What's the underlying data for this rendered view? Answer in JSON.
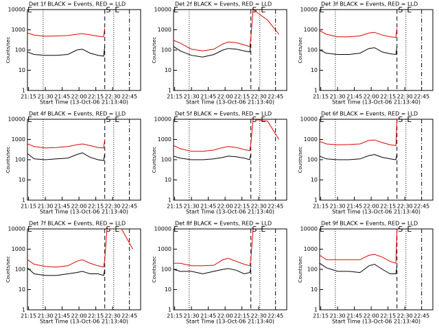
{
  "chart_data": [
    {
      "type": "line",
      "title": "Det 1f BLACK = Events, RED = LLD",
      "x_label": "Start Time (13-Oct-06 21:13:40)",
      "y_label": "Counts/sec",
      "log_y": true,
      "x": [
        "21:14",
        "21:20",
        "21:30",
        "21:40",
        "21:50",
        "21:58",
        "22:03",
        "22:10",
        "22:17",
        "22:22",
        "22:23",
        "22:25",
        "22:38",
        "22:48"
      ],
      "series": [
        {
          "name": "LLD",
          "color": "#e00000",
          "values": [
            700,
            550,
            480,
            500,
            520,
            600,
            650,
            560,
            480,
            450,
            1200,
            null,
            null,
            null
          ]
        },
        {
          "name": "Events",
          "color": "#000000",
          "values": [
            80,
            60,
            55,
            55,
            60,
            100,
            110,
            70,
            55,
            50,
            150,
            null,
            null,
            null
          ]
        }
      ],
      "xlim": [
        "21:14",
        "22:55"
      ],
      "ylim": [
        1,
        10000
      ],
      "yticks": [
        1,
        10,
        100,
        1000,
        10000
      ],
      "xticks": [
        "21:15",
        "21:30",
        "21:45",
        "22:00",
        "22:15",
        "22:30",
        "22:45"
      ],
      "vlines": [
        {
          "x": "21:28",
          "style": "dotted"
        },
        {
          "x": "22:23",
          "style": "dashed"
        },
        {
          "x": "22:31",
          "style": "dotted"
        },
        {
          "x": "22:45",
          "style": "dashdot"
        }
      ],
      "annotations": [
        {
          "x": "21:14",
          "text": "E"
        },
        {
          "x": "22:24",
          "text": "S"
        },
        {
          "x": "22:32",
          "text": "E"
        }
      ]
    },
    {
      "type": "line",
      "title": "Det 2f BLACK = Events, RED = LLD",
      "x_label": "Start Time (13-Oct-06 21:13:40)",
      "y_label": "Counts/sec",
      "log_y": true,
      "x": [
        "21:14",
        "21:20",
        "21:30",
        "21:40",
        "21:50",
        "21:58",
        "22:03",
        "22:10",
        "22:17",
        "22:22",
        "22:23",
        "22:25",
        "22:38",
        "22:48"
      ],
      "series": [
        {
          "name": "LLD",
          "color": "#e00000",
          "values": [
            300,
            220,
            110,
            90,
            110,
            200,
            250,
            230,
            180,
            150,
            400,
            10000,
            3000,
            600
          ]
        },
        {
          "name": "Events",
          "color": "#000000",
          "values": [
            150,
            90,
            55,
            45,
            60,
            100,
            120,
            110,
            90,
            80,
            200,
            null,
            null,
            null
          ]
        }
      ],
      "xlim": [
        "21:14",
        "22:55"
      ],
      "ylim": [
        1,
        10000
      ],
      "yticks": [
        1,
        10,
        100,
        1000,
        10000
      ],
      "xticks": [
        "21:15",
        "21:30",
        "21:45",
        "22:00",
        "22:15",
        "22:30",
        "22:45"
      ],
      "vlines": [
        {
          "x": "21:28",
          "style": "dotted"
        },
        {
          "x": "22:23",
          "style": "dashed"
        },
        {
          "x": "22:31",
          "style": "dotted"
        },
        {
          "x": "22:45",
          "style": "dashdot"
        }
      ],
      "annotations": [
        {
          "x": "21:14",
          "text": "E"
        },
        {
          "x": "22:24",
          "text": "S"
        },
        {
          "x": "22:32",
          "text": "E"
        }
      ]
    },
    {
      "type": "line",
      "title": "Det 3f BLACK = Events, RED = LLD",
      "x_label": "Start Time (13-Oct-06 21:13:40)",
      "y_label": "Counts/sec",
      "log_y": true,
      "x": [
        "21:14",
        "21:20",
        "21:30",
        "21:40",
        "21:50",
        "21:58",
        "22:03",
        "22:10",
        "22:17",
        "22:22",
        "22:23",
        "22:25",
        "22:38",
        "22:48"
      ],
      "series": [
        {
          "name": "LLD",
          "color": "#e00000",
          "values": [
            900,
            600,
            450,
            450,
            500,
            700,
            750,
            550,
            450,
            420,
            1200,
            null,
            null,
            null
          ]
        },
        {
          "name": "Events",
          "color": "#000000",
          "values": [
            100,
            70,
            60,
            60,
            70,
            120,
            130,
            80,
            65,
            60,
            150,
            null,
            null,
            null
          ]
        }
      ],
      "xlim": [
        "21:14",
        "22:55"
      ],
      "ylim": [
        1,
        10000
      ],
      "yticks": [
        1,
        10,
        100,
        1000,
        10000
      ],
      "xticks": [
        "21:15",
        "21:30",
        "21:45",
        "22:00",
        "22:15",
        "22:30",
        "22:45"
      ],
      "vlines": [
        {
          "x": "21:28",
          "style": "dotted"
        },
        {
          "x": "22:23",
          "style": "dashed"
        },
        {
          "x": "22:31",
          "style": "dotted"
        },
        {
          "x": "22:45",
          "style": "dashdot"
        }
      ],
      "annotations": [
        {
          "x": "21:14",
          "text": "E"
        },
        {
          "x": "22:24",
          "text": "S"
        },
        {
          "x": "22:32",
          "text": "E"
        }
      ]
    },
    {
      "type": "line",
      "title": "Det 4f BLACK = Events, RED = LLD",
      "x_label": "Start Time (13-Oct-06 21:13:40)",
      "y_label": "Counts/sec",
      "log_y": true,
      "x": [
        "21:14",
        "21:20",
        "21:30",
        "21:40",
        "21:50",
        "21:58",
        "22:03",
        "22:10",
        "22:17",
        "22:22",
        "22:23",
        "22:25",
        "22:38",
        "22:48"
      ],
      "series": [
        {
          "name": "LLD",
          "color": "#e00000",
          "values": [
            600,
            450,
            380,
            400,
            450,
            550,
            600,
            500,
            400,
            380,
            1000,
            null,
            null,
            null
          ]
        },
        {
          "name": "Events",
          "color": "#000000",
          "values": [
            200,
            110,
            100,
            110,
            120,
            180,
            220,
            130,
            100,
            90,
            200,
            null,
            null,
            null
          ]
        }
      ],
      "xlim": [
        "21:14",
        "22:55"
      ],
      "ylim": [
        1,
        10000
      ],
      "yticks": [
        1,
        10,
        100,
        1000,
        10000
      ],
      "xticks": [
        "21:15",
        "21:30",
        "21:45",
        "22:00",
        "22:15",
        "22:30",
        "22:45"
      ],
      "vlines": [
        {
          "x": "21:28",
          "style": "dotted"
        },
        {
          "x": "22:23",
          "style": "dashed"
        },
        {
          "x": "22:31",
          "style": "dotted"
        },
        {
          "x": "22:45",
          "style": "dashdot"
        }
      ],
      "annotations": [
        {
          "x": "21:14",
          "text": "E"
        },
        {
          "x": "22:24",
          "text": "S"
        },
        {
          "x": "22:32",
          "text": "E"
        }
      ]
    },
    {
      "type": "line",
      "title": "Det 5f BLACK = Events, RED = LLD",
      "x_label": "Start Time (13-Oct-06 21:13:40)",
      "y_label": "Counts/sec",
      "log_y": true,
      "x": [
        "21:14",
        "21:20",
        "21:30",
        "21:40",
        "21:50",
        "21:58",
        "22:03",
        "22:10",
        "22:17",
        "22:22",
        "22:23",
        "22:25",
        "22:38",
        "22:48"
      ],
      "series": [
        {
          "name": "LLD",
          "color": "#e00000",
          "values": [
            500,
            350,
            260,
            260,
            300,
            400,
            450,
            400,
            320,
            280,
            600,
            10000,
            8000,
            1000
          ]
        },
        {
          "name": "Events",
          "color": "#000000",
          "values": [
            150,
            120,
            100,
            100,
            110,
            130,
            150,
            140,
            120,
            100,
            200,
            null,
            null,
            null
          ]
        }
      ],
      "xlim": [
        "21:14",
        "22:55"
      ],
      "ylim": [
        1,
        10000
      ],
      "yticks": [
        1,
        10,
        100,
        1000,
        10000
      ],
      "xticks": [
        "21:15",
        "21:30",
        "21:45",
        "22:00",
        "22:15",
        "22:30",
        "22:45"
      ],
      "vlines": [
        {
          "x": "21:28",
          "style": "dotted"
        },
        {
          "x": "22:23",
          "style": "dashed"
        },
        {
          "x": "22:31",
          "style": "dotted"
        },
        {
          "x": "22:45",
          "style": "dashdot"
        }
      ],
      "annotations": [
        {
          "x": "21:14",
          "text": "E"
        },
        {
          "x": "22:24",
          "text": "S"
        },
        {
          "x": "22:32",
          "text": "E"
        }
      ]
    },
    {
      "type": "line",
      "title": "Det 6f BLACK = Events, RED = LLD",
      "x_label": "Start Time (13-Oct-06 21:13:40)",
      "y_label": "Counts/sec",
      "log_y": true,
      "x": [
        "21:14",
        "21:20",
        "21:30",
        "21:40",
        "21:50",
        "21:58",
        "22:03",
        "22:10",
        "22:17",
        "22:22",
        "22:23",
        "22:25",
        "22:38",
        "22:48"
      ],
      "series": [
        {
          "name": "LLD",
          "color": "#e00000",
          "values": [
            800,
            600,
            550,
            560,
            600,
            900,
            950,
            700,
            550,
            500,
            10000,
            null,
            null,
            null
          ]
        },
        {
          "name": "Events",
          "color": "#000000",
          "values": [
            150,
            110,
            100,
            100,
            110,
            160,
            180,
            130,
            110,
            100,
            200,
            null,
            null,
            null
          ]
        }
      ],
      "xlim": [
        "21:14",
        "22:55"
      ],
      "ylim": [
        1,
        10000
      ],
      "yticks": [
        1,
        10,
        100,
        1000,
        10000
      ],
      "xticks": [
        "21:15",
        "21:30",
        "21:45",
        "22:00",
        "22:15",
        "22:30",
        "22:45"
      ],
      "vlines": [
        {
          "x": "21:28",
          "style": "dotted"
        },
        {
          "x": "22:23",
          "style": "dashed"
        },
        {
          "x": "22:31",
          "style": "dotted"
        },
        {
          "x": "22:45",
          "style": "dashdot"
        }
      ],
      "annotations": [
        {
          "x": "21:14",
          "text": "E"
        },
        {
          "x": "22:24",
          "text": "S"
        },
        {
          "x": "22:32",
          "text": "E"
        }
      ]
    },
    {
      "type": "line",
      "title": "Det 7f BLACK = Events, RED = LLD",
      "x_label": "Start Time (13-Oct-06 21:13:40)",
      "y_label": "Counts/sec",
      "log_y": true,
      "x": [
        "21:14",
        "21:20",
        "21:30",
        "21:40",
        "21:50",
        "21:58",
        "22:03",
        "22:10",
        "22:17",
        "22:22",
        "22:23",
        "22:25",
        "22:38",
        "22:48"
      ],
      "series": [
        {
          "name": "LLD",
          "color": "#e00000",
          "values": [
            300,
            180,
            140,
            130,
            150,
            250,
            300,
            200,
            150,
            130,
            300,
            10000,
            10000,
            1000
          ]
        },
        {
          "name": "Events",
          "color": "#000000",
          "values": [
            120,
            60,
            50,
            50,
            60,
            70,
            80,
            60,
            60,
            50,
            100,
            null,
            null,
            null
          ]
        }
      ],
      "xlim": [
        "21:14",
        "22:55"
      ],
      "ylim": [
        1,
        10000
      ],
      "yticks": [
        1,
        10,
        100,
        1000,
        10000
      ],
      "xticks": [
        "21:15",
        "21:30",
        "21:45",
        "22:00",
        "22:15",
        "22:30",
        "22:45"
      ],
      "vlines": [
        {
          "x": "21:28",
          "style": "dotted"
        },
        {
          "x": "22:23",
          "style": "dashed"
        },
        {
          "x": "22:31",
          "style": "dotted"
        },
        {
          "x": "22:45",
          "style": "dashdot"
        }
      ],
      "annotations": [
        {
          "x": "21:14",
          "text": "E"
        },
        {
          "x": "22:24",
          "text": "S"
        },
        {
          "x": "22:32",
          "text": "E"
        }
      ]
    },
    {
      "type": "line",
      "title": "Det 8f BLACK = Events, RED = LLD",
      "x_label": "Start Time (13-Oct-06 21:13:40)",
      "y_label": "Counts/sec",
      "log_y": true,
      "x": [
        "21:14",
        "21:20",
        "21:30",
        "21:40",
        "21:50",
        "21:58",
        "22:03",
        "22:10",
        "22:17",
        "22:22",
        "22:23",
        "22:25",
        "22:38",
        "22:48"
      ],
      "series": [
        {
          "name": "LLD",
          "color": "#e00000",
          "values": [
            200,
            200,
            150,
            150,
            160,
            300,
            350,
            250,
            180,
            150,
            300,
            10000,
            null,
            null
          ]
        },
        {
          "name": "Events",
          "color": "#000000",
          "values": [
            100,
            80,
            80,
            60,
            80,
            100,
            110,
            90,
            60,
            70,
            120,
            null,
            null,
            null
          ]
        }
      ],
      "xlim": [
        "21:14",
        "22:55"
      ],
      "ylim": [
        1,
        10000
      ],
      "yticks": [
        1,
        10,
        100,
        1000,
        10000
      ],
      "xticks": [
        "21:15",
        "21:30",
        "21:45",
        "22:00",
        "22:15",
        "22:30",
        "22:45"
      ],
      "vlines": [
        {
          "x": "21:28",
          "style": "dotted"
        },
        {
          "x": "22:23",
          "style": "dashed"
        },
        {
          "x": "22:31",
          "style": "dotted"
        },
        {
          "x": "22:45",
          "style": "dashdot"
        }
      ],
      "annotations": [
        {
          "x": "21:14",
          "text": "E"
        },
        {
          "x": "22:24",
          "text": "S"
        },
        {
          "x": "22:32",
          "text": "E"
        }
      ]
    },
    {
      "type": "line",
      "title": "Det 9f BLACK = Events, RED = LLD",
      "x_label": "Start Time (13-Oct-06 21:13:40)",
      "y_label": "Counts/sec",
      "log_y": true,
      "x": [
        "21:14",
        "21:20",
        "21:30",
        "21:40",
        "21:50",
        "21:58",
        "22:03",
        "22:10",
        "22:17",
        "22:22",
        "22:23",
        "22:25",
        "22:38",
        "22:48"
      ],
      "series": [
        {
          "name": "LLD",
          "color": "#e00000",
          "values": [
            500,
            300,
            300,
            300,
            300,
            500,
            550,
            400,
            250,
            200,
            10000,
            null,
            null,
            null
          ]
        },
        {
          "name": "Events",
          "color": "#000000",
          "values": [
            200,
            120,
            80,
            80,
            70,
            150,
            180,
            100,
            60,
            60,
            150,
            null,
            null,
            null
          ]
        }
      ],
      "xlim": [
        "21:14",
        "22:55"
      ],
      "ylim": [
        1,
        10000
      ],
      "yticks": [
        1,
        10,
        100,
        1000,
        10000
      ],
      "xticks": [
        "21:15",
        "21:30",
        "21:45",
        "22:00",
        "22:15",
        "22:30",
        "22:45"
      ],
      "vlines": [
        {
          "x": "21:28",
          "style": "dotted"
        },
        {
          "x": "22:23",
          "style": "dashed"
        },
        {
          "x": "22:31",
          "style": "dotted"
        },
        {
          "x": "22:45",
          "style": "dashdot"
        }
      ],
      "annotations": [
        {
          "x": "21:14",
          "text": "E"
        },
        {
          "x": "22:24",
          "text": "S"
        },
        {
          "x": "22:32",
          "text": "E"
        }
      ]
    }
  ]
}
